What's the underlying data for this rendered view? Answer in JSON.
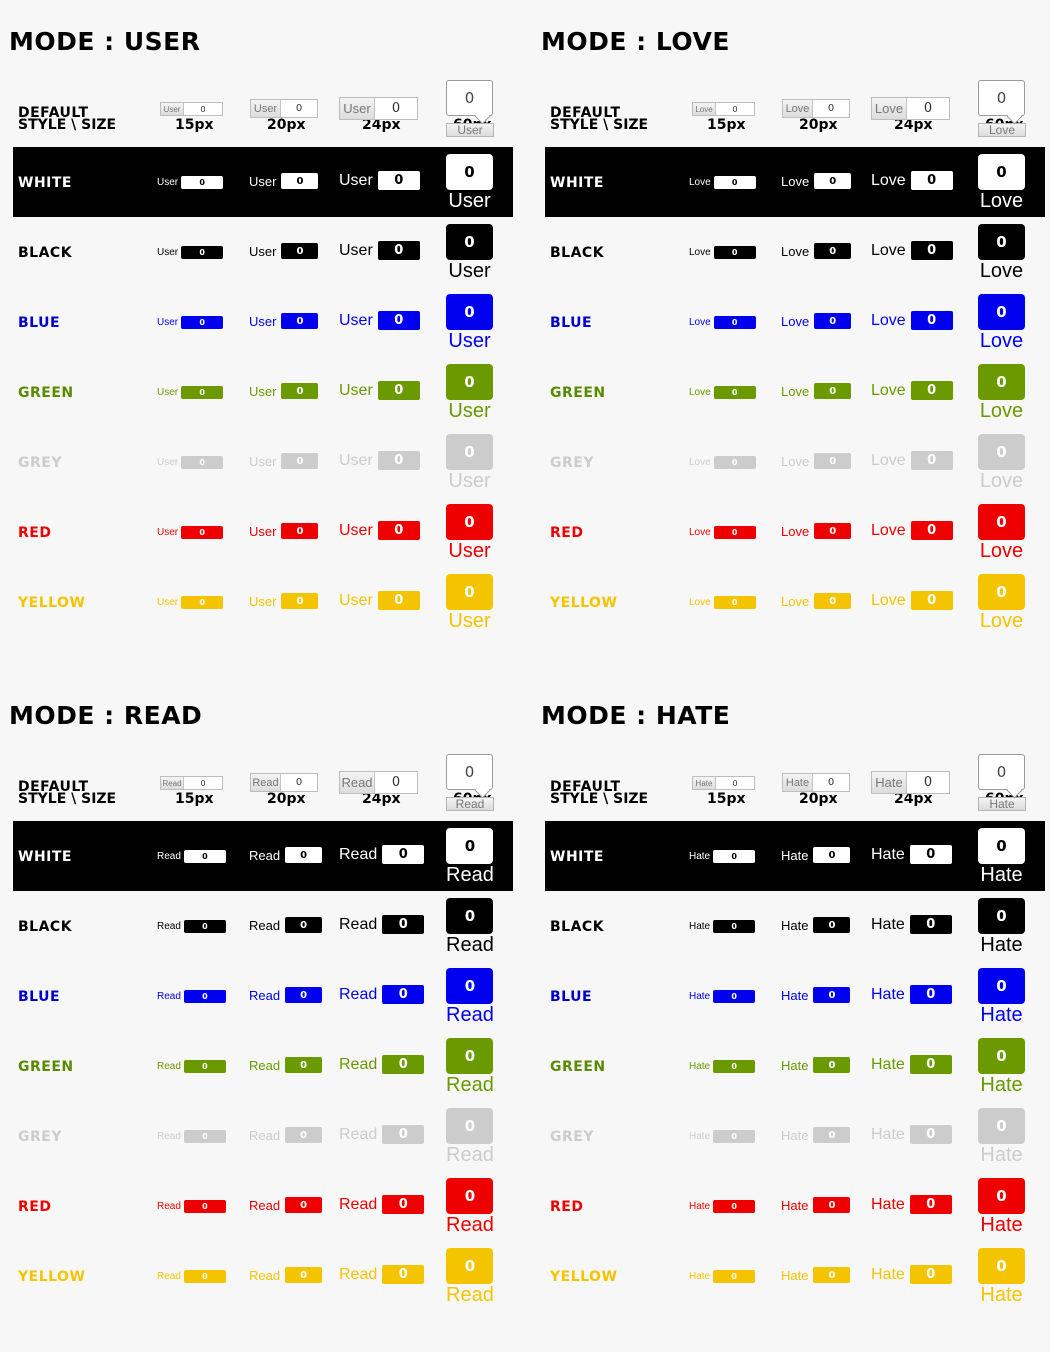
{
  "header": {
    "style_size": "STYLE \\ SIZE",
    "sizes": [
      "15px",
      "20px",
      "24px",
      "60px"
    ]
  },
  "count": "0",
  "styles": [
    {
      "name": "DEFAULT",
      "label_color": "#000000"
    },
    {
      "name": "WHITE",
      "label_color": "#ffffff",
      "text": "#ffffff",
      "box": "#ffffff",
      "num": "#000000"
    },
    {
      "name": "BLACK",
      "label_color": "#000000",
      "text": "#000000",
      "box": "#000000",
      "num": "#ffffff"
    },
    {
      "name": "BLUE",
      "label_color": "#0000cc",
      "text": "#0000ee",
      "box": "#0000ee",
      "num": "#ffffff"
    },
    {
      "name": "GREEN",
      "label_color": "#5a8a00",
      "text": "#6a9a00",
      "box": "#6a9a00",
      "num": "#ffffff"
    },
    {
      "name": "GREY",
      "label_color": "#cccccc",
      "text": "#cccccc",
      "box": "#cccccc",
      "num": "#ffffff"
    },
    {
      "name": "RED",
      "label_color": "#ee0000",
      "text": "#ee0000",
      "box": "#ee0000",
      "num": "#ffffff"
    },
    {
      "name": "YELLOW",
      "label_color": "#f5c400",
      "text": "#f5c400",
      "box": "#f5c400",
      "num": "#ffffff"
    }
  ],
  "panels": [
    {
      "title": "MODE : USER",
      "label": "User"
    },
    {
      "title": "MODE : LOVE",
      "label": "Love"
    },
    {
      "title": "MODE : READ",
      "label": "Read"
    },
    {
      "title": "MODE : HATE",
      "label": "Hate"
    }
  ]
}
